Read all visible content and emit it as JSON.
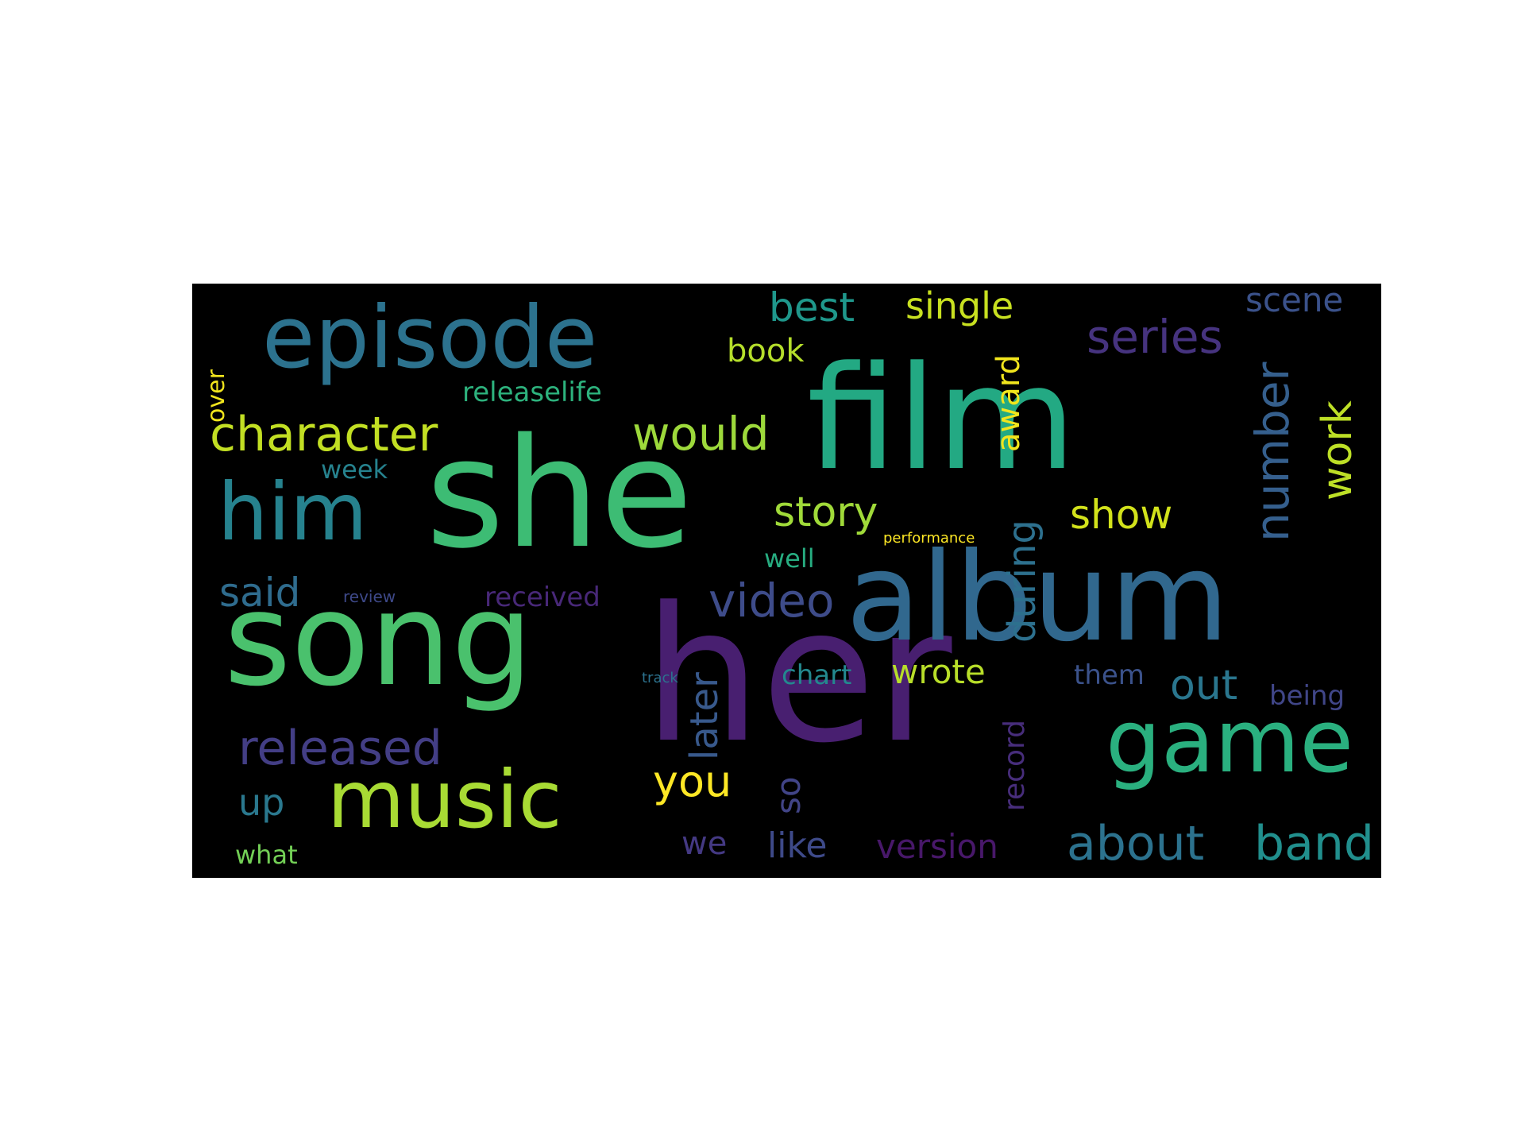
{
  "word_cloud": {
    "background_color": "#000000",
    "words": [
      {
        "text": "her",
        "color": "#481f70"
      },
      {
        "text": "film",
        "color": "#23a983"
      },
      {
        "text": "she",
        "color": "#3dbc74"
      },
      {
        "text": "album",
        "color": "#31688e"
      },
      {
        "text": "song",
        "color": "#4ac16d"
      },
      {
        "text": "episode",
        "color": "#2c728e"
      },
      {
        "text": "game",
        "color": "#2ab07f"
      },
      {
        "text": "music",
        "color": "#a8db34"
      },
      {
        "text": "him",
        "color": "#26828e"
      },
      {
        "text": "character",
        "color": "#c2df23"
      },
      {
        "text": "would",
        "color": "#9dd93b"
      },
      {
        "text": "released",
        "color": "#433e85"
      },
      {
        "text": "about",
        "color": "#2c728e"
      },
      {
        "text": "band",
        "color": "#218f8d"
      },
      {
        "text": "series",
        "color": "#46337f"
      },
      {
        "text": "show",
        "color": "#d2e21b"
      },
      {
        "text": "number",
        "color": "#355f8d"
      },
      {
        "text": "story",
        "color": "#a0da39"
      },
      {
        "text": "video",
        "color": "#3e4c8a"
      },
      {
        "text": "said",
        "color": "#2f6c8e"
      },
      {
        "text": "work",
        "color": "#bddf26"
      },
      {
        "text": "you",
        "color": "#fde725"
      },
      {
        "text": "best",
        "color": "#1f978b"
      },
      {
        "text": "single",
        "color": "#c8e020"
      },
      {
        "text": "book",
        "color": "#b5de2b"
      },
      {
        "text": "out",
        "color": "#2a768e"
      },
      {
        "text": "wrote",
        "color": "#b8de29"
      },
      {
        "text": "during",
        "color": "#2d708e"
      },
      {
        "text": "award",
        "color": "#f1e51d"
      },
      {
        "text": "scene",
        "color": "#3b528b"
      },
      {
        "text": "releaselife",
        "color": "#2db27d"
      },
      {
        "text": "up",
        "color": "#2a788e"
      },
      {
        "text": "later",
        "color": "#38598c"
      },
      {
        "text": "received",
        "color": "#482878"
      },
      {
        "text": "version",
        "color": "#48186a"
      },
      {
        "text": "like",
        "color": "#3e4a89"
      },
      {
        "text": "we",
        "color": "#443983"
      },
      {
        "text": "so",
        "color": "#414487"
      },
      {
        "text": "record",
        "color": "#472d7b"
      },
      {
        "text": "chart",
        "color": "#23888e"
      },
      {
        "text": "them",
        "color": "#3b528b"
      },
      {
        "text": "being",
        "color": "#404688"
      },
      {
        "text": "well",
        "color": "#27ad81"
      },
      {
        "text": "week",
        "color": "#26828e"
      },
      {
        "text": "what",
        "color": "#73d056"
      },
      {
        "text": "review",
        "color": "#3e4989"
      },
      {
        "text": "performance",
        "color": "#fde725"
      },
      {
        "text": "track",
        "color": "#2c728e"
      },
      {
        "text": "over",
        "color": "#f1e51d"
      }
    ]
  }
}
